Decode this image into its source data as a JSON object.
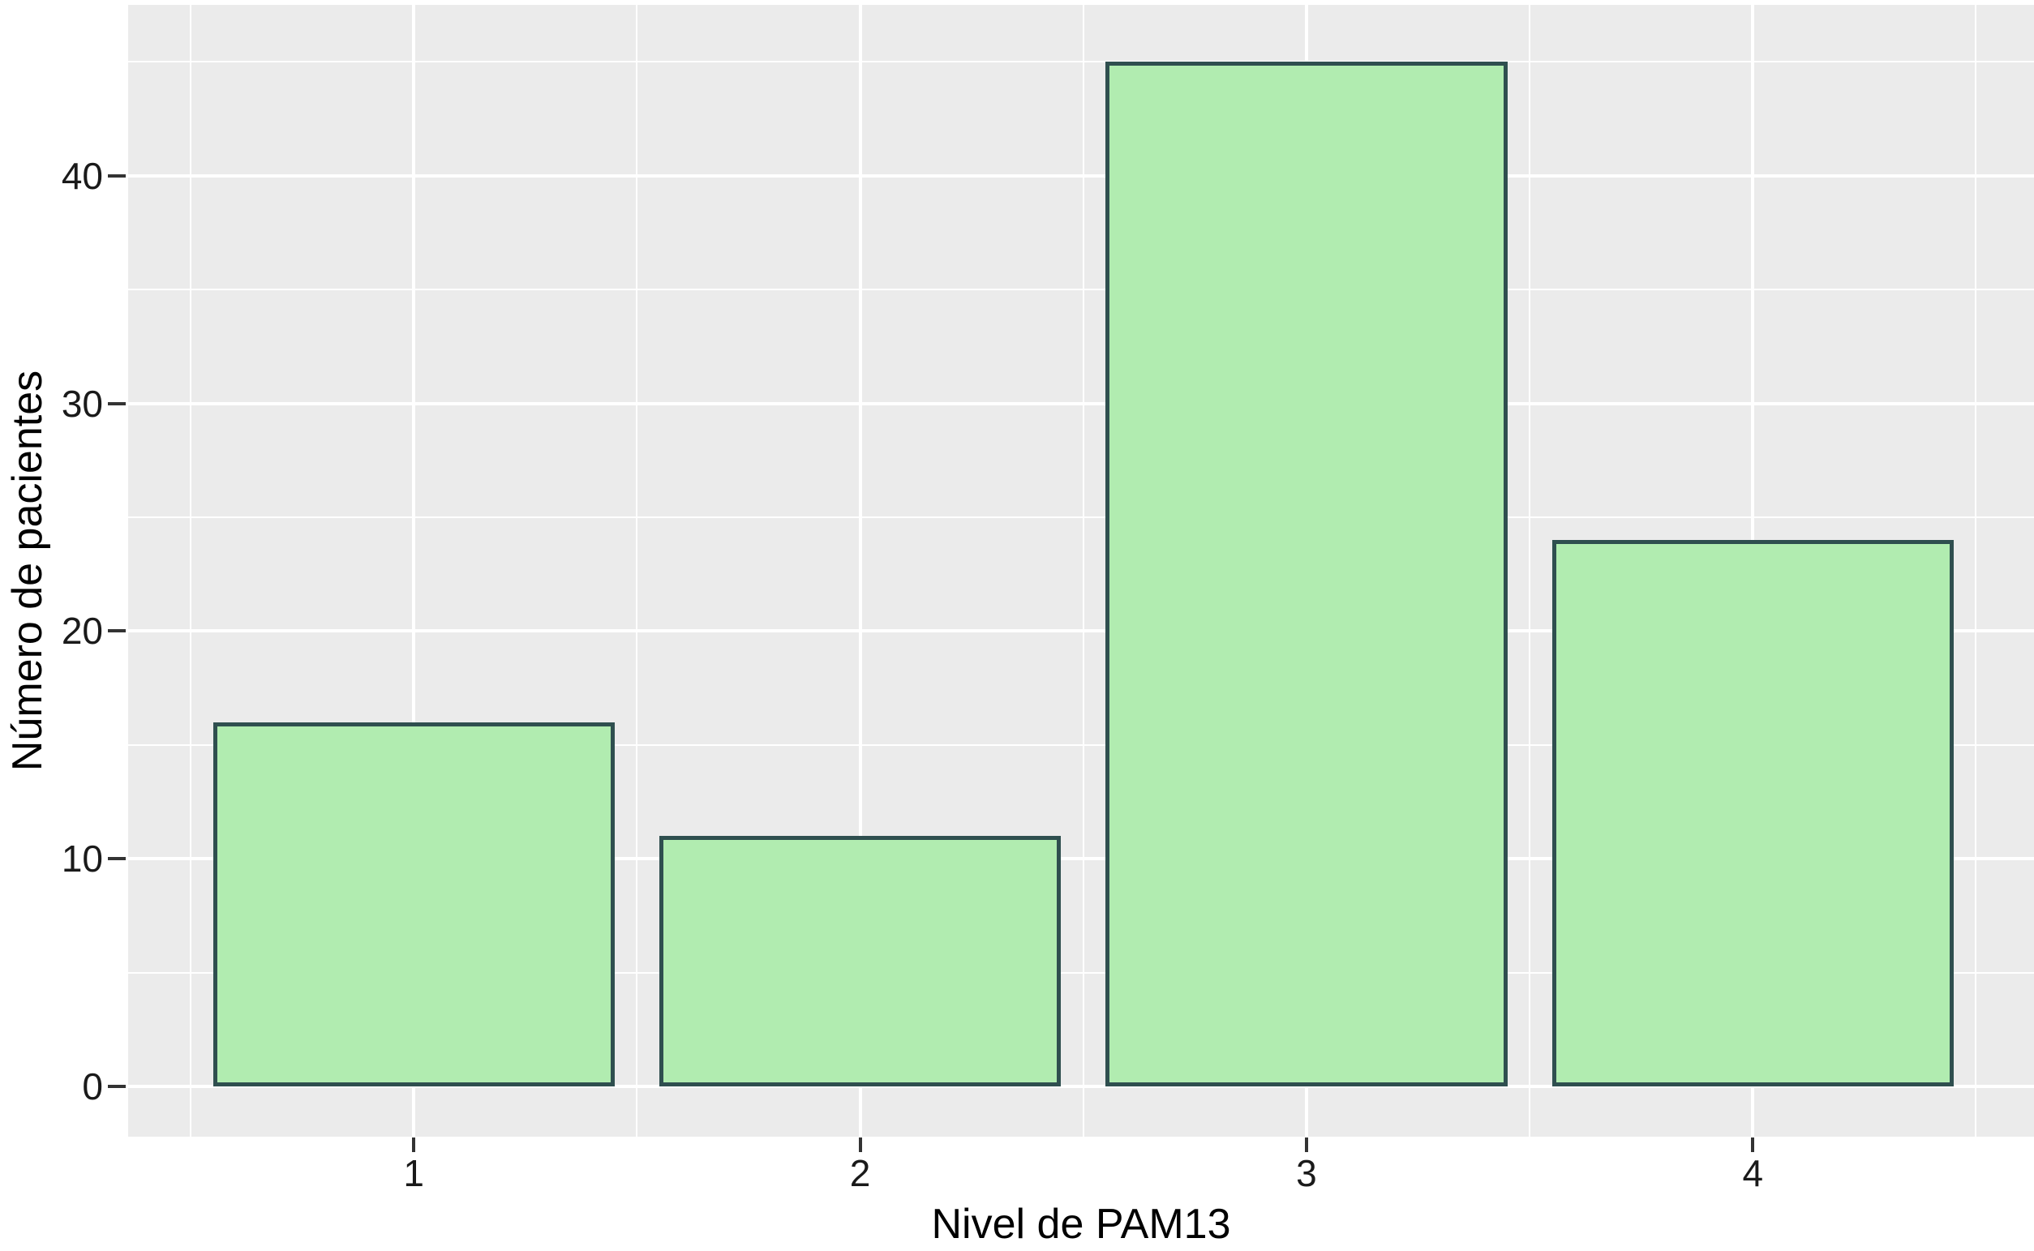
{
  "chart_data": {
    "type": "bar",
    "title": "",
    "xlabel": "Nivel de PAM13",
    "ylabel": "Número de pacientes",
    "categories": [
      "1",
      "2",
      "3",
      "4"
    ],
    "values": [
      16,
      11,
      45,
      24
    ],
    "x_positions": [
      1,
      2,
      3,
      4
    ],
    "bar_width_units": 0.9,
    "y_ticks": [
      0,
      10,
      20,
      30,
      40
    ],
    "y_minor_ticks": [
      5,
      15,
      25,
      35,
      45
    ],
    "x_minor_positions": [
      0.5,
      1.5,
      2.5,
      3.5,
      4.5
    ],
    "xlim": [
      0.36,
      4.63
    ],
    "ylim": [
      -2.2,
      47.5
    ],
    "grid": "major-and-minor-white",
    "legend": "none",
    "colors": {
      "bar_fill": "#B1ECB0",
      "bar_border": "#2F4F4F",
      "panel_background": "#EBEBEB",
      "gridline": "#FFFFFF",
      "tick_mark": "#333333",
      "tick_label": "#1A1A1A",
      "axis_title": "#000000",
      "figure_background": "#FFFFFF"
    }
  }
}
